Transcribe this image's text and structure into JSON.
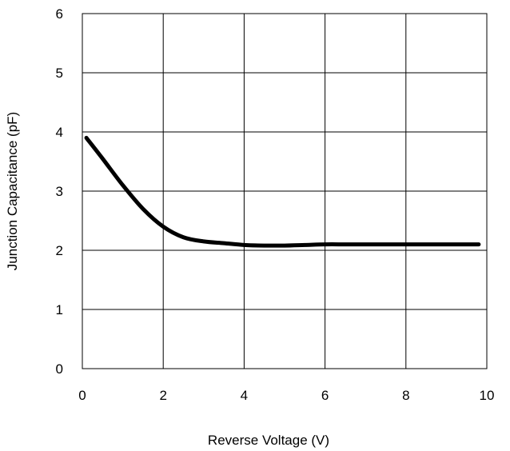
{
  "chart_data": {
    "type": "line",
    "title": "",
    "xlabel": "Reverse Voltage (V)",
    "ylabel": "Junction Capacitance (pF)",
    "xlim": [
      0,
      10
    ],
    "ylim": [
      0,
      6
    ],
    "xticks": [
      0,
      2,
      4,
      6,
      8,
      10
    ],
    "yticks": [
      0,
      1,
      2,
      3,
      4,
      5,
      6
    ],
    "xtick_labels": [
      "0",
      "2",
      "4",
      "6",
      "8",
      "10"
    ],
    "ytick_labels": [
      "0",
      "1",
      "2",
      "3",
      "4",
      "5",
      "6"
    ],
    "grid": true,
    "legend": "none",
    "line_color": "#000000",
    "grid_color": "#000000",
    "series": [
      {
        "x": [
          0.1,
          0.5,
          1.0,
          1.5,
          2.0,
          2.5,
          3.0,
          3.5,
          4.0,
          4.5,
          5.0,
          5.5,
          6.0,
          6.5,
          7.0,
          7.5,
          8.0,
          8.5,
          9.0,
          9.5,
          9.8
        ],
        "values": [
          3.9,
          3.55,
          3.1,
          2.7,
          2.4,
          2.22,
          2.15,
          2.12,
          2.09,
          2.08,
          2.08,
          2.09,
          2.1,
          2.1,
          2.1,
          2.1,
          2.1,
          2.1,
          2.1,
          2.1,
          2.1
        ]
      }
    ]
  }
}
